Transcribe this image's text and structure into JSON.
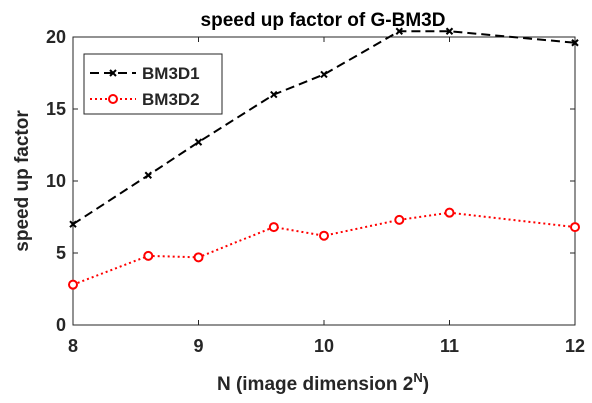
{
  "chart_data": {
    "type": "line",
    "title": "speed up factor of G-BM3D",
    "xlabel": "N (image dimension 2",
    "xlabel_sup": "N",
    "xlabel_suffix": ")",
    "ylabel": "speed up factor",
    "xlim": [
      8,
      12
    ],
    "ylim": [
      0,
      20
    ],
    "xticks": [
      "8",
      "9",
      "10",
      "11",
      "12"
    ],
    "yticks": [
      "0",
      "5",
      "10",
      "15",
      "20"
    ],
    "grid": false,
    "legend_position": "top-left",
    "series": [
      {
        "name": "BM3D1",
        "color": "#000000",
        "line_style": "dashed",
        "marker": "x",
        "x": [
          8,
          8.6,
          9,
          9.6,
          10,
          10.6,
          11,
          12
        ],
        "y": [
          7.0,
          10.4,
          12.7,
          16.0,
          17.4,
          20.4,
          20.4,
          19.6
        ]
      },
      {
        "name": "BM3D2",
        "color": "#ff0000",
        "line_style": "dotted",
        "marker": "circle",
        "x": [
          8,
          8.6,
          9,
          9.6,
          10,
          10.6,
          11,
          12
        ],
        "y": [
          2.8,
          4.8,
          4.7,
          6.8,
          6.2,
          7.3,
          7.8,
          6.8
        ]
      }
    ]
  }
}
